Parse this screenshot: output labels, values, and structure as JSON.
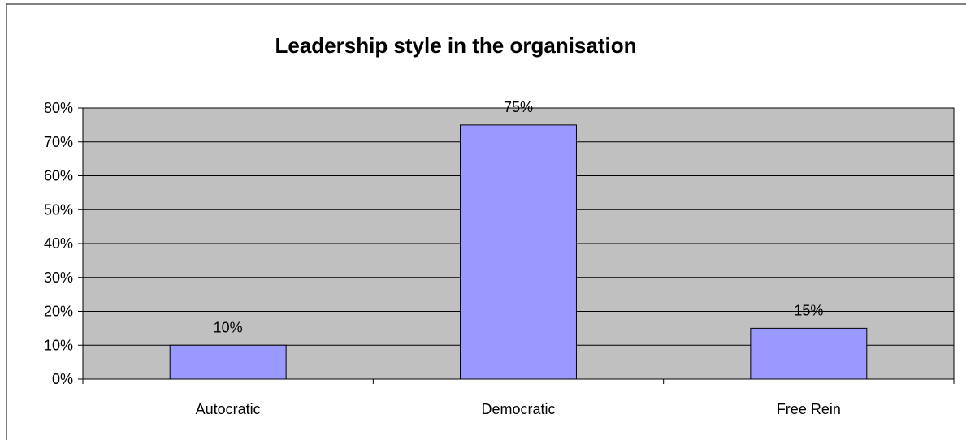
{
  "chart_data": {
    "type": "bar",
    "title": "Leadership style in the organisation",
    "xlabel": "",
    "ylabel": "",
    "categories": [
      "Autocratic",
      "Democratic",
      "Free Rein"
    ],
    "values": [
      10,
      75,
      15
    ],
    "value_labels": [
      "10%",
      "75%",
      "15%"
    ],
    "y_tick_labels": [
      "0%",
      "10%",
      "20%",
      "30%",
      "40%",
      "50%",
      "60%",
      "70%",
      "80%"
    ],
    "y_ticks": [
      0,
      10,
      20,
      30,
      40,
      50,
      60,
      70,
      80
    ],
    "ylim": [
      0,
      80
    ],
    "grid": true,
    "legend": "none",
    "colors": {
      "bar_fill": "#9999ff",
      "bar_stroke": "#000000",
      "plot_background": "#c0c0c0",
      "gridline": "#000000"
    }
  }
}
